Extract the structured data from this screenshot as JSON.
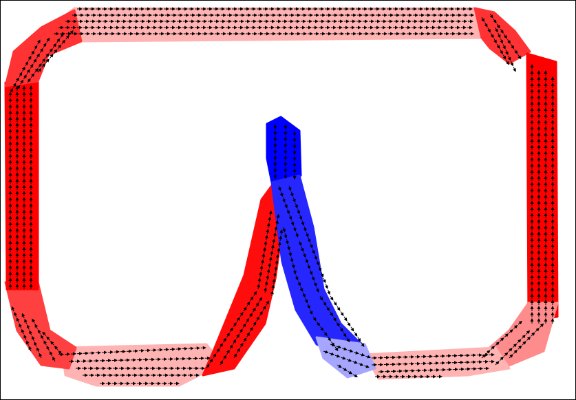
{
  "chart_data": {
    "type": "heatmap",
    "variant": "vector-field-quiver-over-signed-scalar-band",
    "title": "",
    "xlabel": "",
    "ylabel": "",
    "axes_ticks": "none",
    "grid": false,
    "legend": "none",
    "colormap": {
      "negative": "#0000ff",
      "zero": "#ffffff",
      "positive": "#ff0000"
    },
    "arrow_color": "#000000",
    "frame_color": "#000000",
    "regions": [
      {
        "name": "outer-loop-top-edge",
        "sign": "positive",
        "intensity": 0.3,
        "flow": "rightward"
      },
      {
        "name": "outer-loop-top-right-corner",
        "sign": "positive",
        "intensity": 0.8,
        "flow": "turning-down"
      },
      {
        "name": "outer-loop-right-edge",
        "sign": "positive",
        "intensity": 1.0,
        "flow": "upward"
      },
      {
        "name": "outer-loop-bottom-right-corner",
        "sign": "positive",
        "intensity": 0.45,
        "flow": "up-right"
      },
      {
        "name": "outer-loop-bottom-right-edge",
        "sign": "positive",
        "intensity": 0.3,
        "flow": "rightward"
      },
      {
        "name": "outer-loop-bottom-left-edge",
        "sign": "positive",
        "intensity": 0.3,
        "flow": "rightward"
      },
      {
        "name": "outer-loop-bottom-left-corner",
        "sign": "positive",
        "intensity": 0.75,
        "flow": "up-right"
      },
      {
        "name": "outer-loop-left-edge",
        "sign": "positive",
        "intensity": 1.0,
        "flow": "upward"
      },
      {
        "name": "outer-loop-top-left-corner",
        "sign": "positive",
        "intensity": 0.8,
        "flow": "up-right"
      },
      {
        "name": "peak-left-flank",
        "sign": "positive",
        "intensity": 0.95,
        "flow": "up-right"
      },
      {
        "name": "peak-tip",
        "sign": "negative",
        "intensity": 1.0,
        "flow": "downward"
      },
      {
        "name": "peak-right-flank",
        "sign": "negative",
        "intensity": 0.85,
        "flow": "down-right"
      },
      {
        "name": "peak-right-foot",
        "sign": "negative",
        "intensity": 0.35,
        "flow": "rightward"
      }
    ]
  }
}
